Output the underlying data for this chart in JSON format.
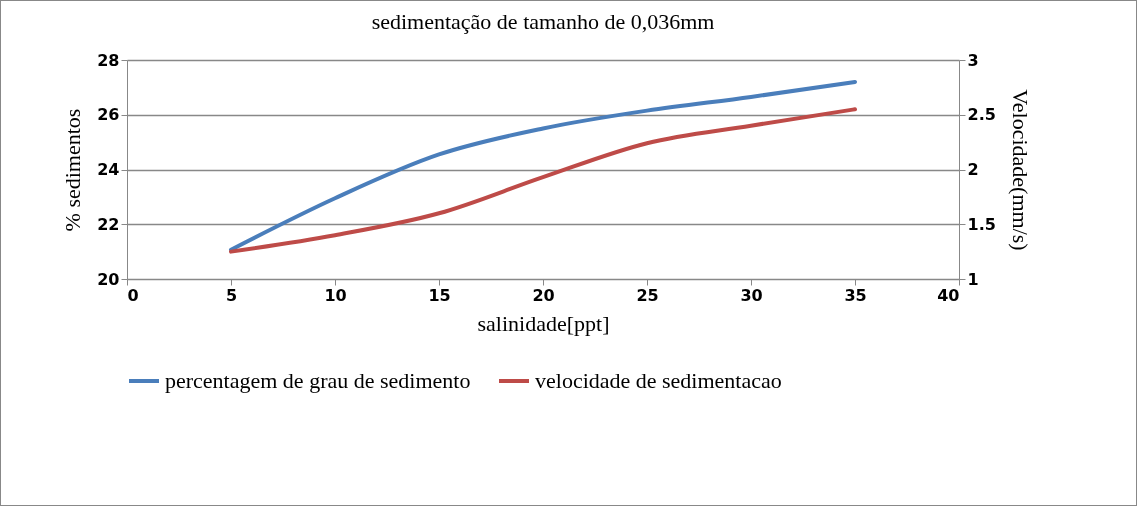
{
  "chart_data": {
    "type": "line",
    "title": "sedimentação de tamanho de 0,036mm",
    "xlabel": "salinidade[ppt]",
    "ylabel": "%  sedimentos",
    "y2label": "Velocidade(mm/s)",
    "x": [
      5,
      10,
      15,
      20,
      25,
      30,
      35
    ],
    "series": [
      {
        "name": "percentagem de grau de sedimento",
        "color": "#4a7ebb",
        "values": [
          21.07,
          22.95,
          24.55,
          25.5,
          26.15,
          26.65,
          27.2
        ]
      },
      {
        "name": "velocidade de sedimentacao",
        "color": "#be4b48",
        "axis": "y2",
        "values": [
          1.25,
          1.4,
          1.6,
          1.93,
          2.24,
          2.4,
          2.55
        ]
      }
    ],
    "xlim": [
      0,
      40
    ],
    "xticks": [
      0,
      5,
      10,
      15,
      20,
      25,
      30,
      35,
      40
    ],
    "ylim": [
      20,
      28
    ],
    "yticks": [
      20,
      22,
      24,
      26,
      28
    ],
    "y2lim": [
      1,
      3
    ],
    "y2ticks": [
      1,
      1.5,
      2,
      2.5,
      3
    ],
    "grid": "y",
    "legend": "bottom",
    "marker": "none",
    "line_style": "solid"
  }
}
